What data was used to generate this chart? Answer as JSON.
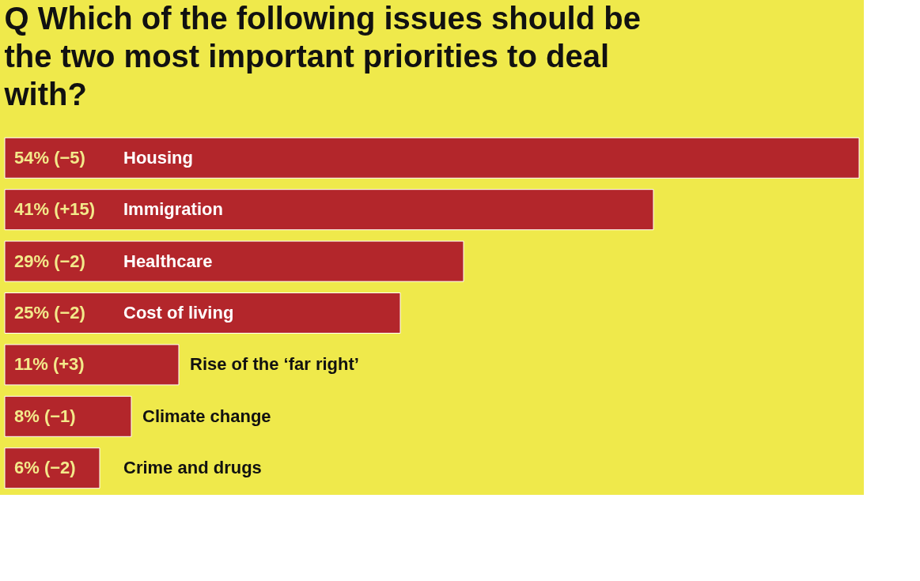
{
  "chart_data": {
    "type": "bar",
    "orientation": "horizontal",
    "title": "Q Which of the following issues should be the two most important priorities to deal with?",
    "categories": [
      "Housing",
      "Immigration",
      "Healthcare",
      "Cost of living",
      "Rise of the ‘far right’",
      "Climate change",
      "Crime and drugs"
    ],
    "values": [
      54,
      41,
      29,
      25,
      11,
      8,
      6
    ],
    "value_labels": [
      "54% (−5)",
      "41% (+15)",
      "29% (−2)",
      "25% (−2)",
      "11% (+3)",
      "8% (−1)",
      "6% (−2)"
    ],
    "color": "#b3262b",
    "grid": false
  }
}
